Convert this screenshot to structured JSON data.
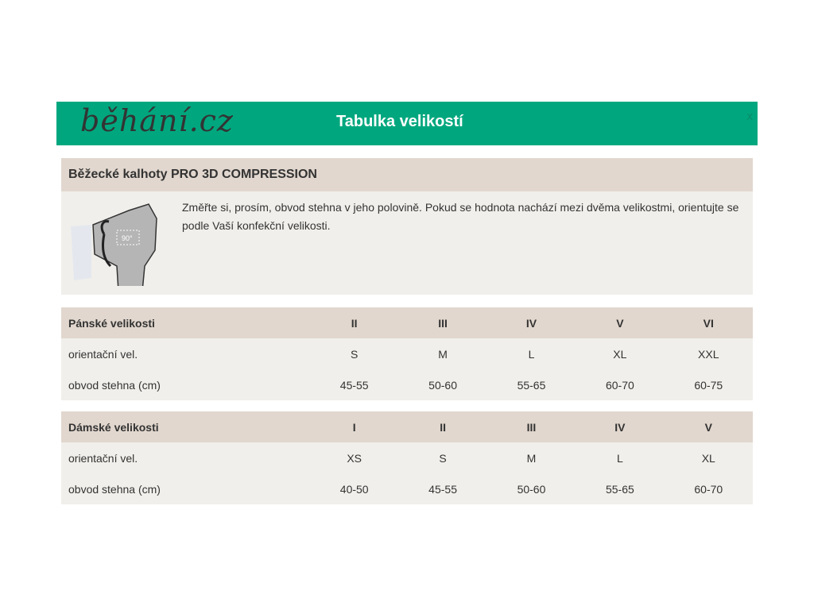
{
  "header": {
    "logo": "běhání.cz",
    "title": "Tabulka velikostí",
    "close": "x"
  },
  "product": {
    "title": "Běžecké kalhoty PRO 3D COMPRESSION",
    "description": "Změřte si, prosím, obvod stehna v jeho polovině. Pokud se hodnota nachází mezi dvěma velikostmi, orientujte se podle Vaší konfekční velikosti.",
    "image_label": "90°"
  },
  "tables": [
    {
      "header": [
        "Pánské velikosti",
        "II",
        "III",
        "IV",
        "V",
        "VI"
      ],
      "rows": [
        [
          "orientační vel.",
          "S",
          "M",
          "L",
          "XL",
          "XXL"
        ],
        [
          "obvod stehna (cm)",
          "45-55",
          "50-60",
          "55-65",
          "60-70",
          "60-75"
        ]
      ]
    },
    {
      "header": [
        "Dámské velikosti",
        "I",
        "II",
        "III",
        "IV",
        "V"
      ],
      "rows": [
        [
          "orientační vel.",
          "XS",
          "S",
          "M",
          "L",
          "XL"
        ],
        [
          "obvod stehna (cm)",
          "40-50",
          "45-55",
          "50-60",
          "55-65",
          "60-70"
        ]
      ]
    }
  ]
}
